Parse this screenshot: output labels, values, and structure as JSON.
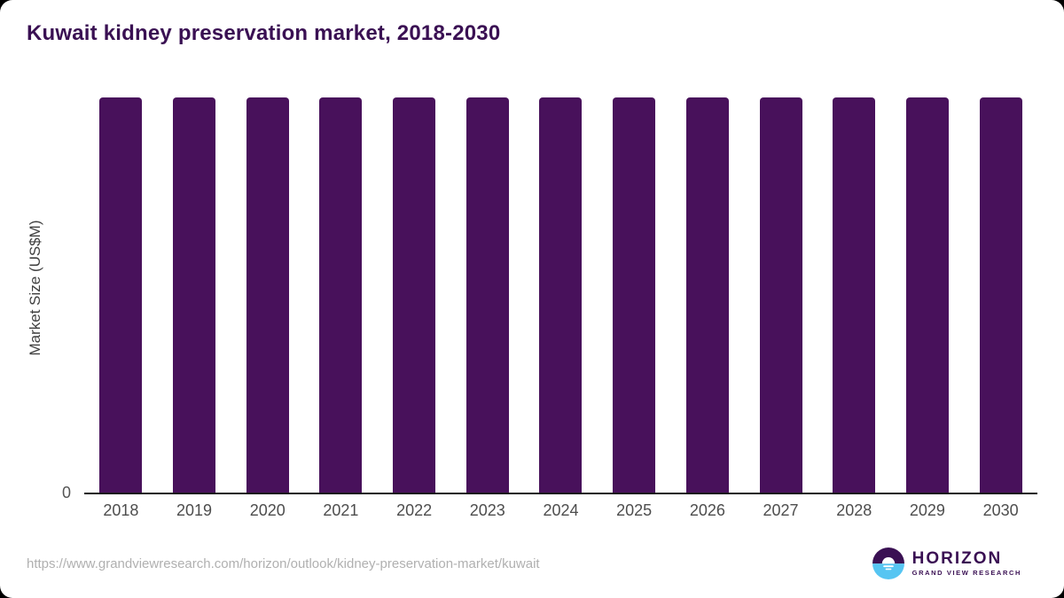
{
  "page": {
    "background": "#000000",
    "card_background": "#ffffff"
  },
  "header": {
    "title": "Kuwait kidney preservation market, 2018-2030",
    "title_color": "#3a1053"
  },
  "y_axis": {
    "label": "Market Size (US$M)",
    "zero_tick": "0"
  },
  "footer": {
    "source_url": "https://www.grandviewresearch.com/horizon/outlook/kidney-preservation-market/kuwait",
    "logo": {
      "brand": "HORIZON",
      "tagline": "GRAND VIEW RESEARCH",
      "icon": "horizon-sunset-circle-icon",
      "purple": "#3a1053",
      "blue": "#56c5f2"
    }
  },
  "chart_data": {
    "type": "bar",
    "title": "Kuwait kidney preservation market, 2018-2030",
    "categories": [
      "2018",
      "2019",
      "2020",
      "2021",
      "2022",
      "2023",
      "2024",
      "2025",
      "2026",
      "2027",
      "2028",
      "2029",
      "2030"
    ],
    "values": [
      100,
      100,
      100,
      100,
      100,
      100,
      100,
      100,
      100,
      100,
      100,
      100,
      100
    ],
    "values_unit": "relative percent of plot height",
    "note": "All 13 bars are rendered at equal full height; no numeric data labels or y-axis values other than 0 are shown",
    "xlabel": "",
    "ylabel": "Market Size (US$M)",
    "ylim": [
      0,
      100
    ],
    "y_tick_labels": [
      "0"
    ],
    "grid": false,
    "legend": false,
    "bar_color": "#48115b"
  }
}
